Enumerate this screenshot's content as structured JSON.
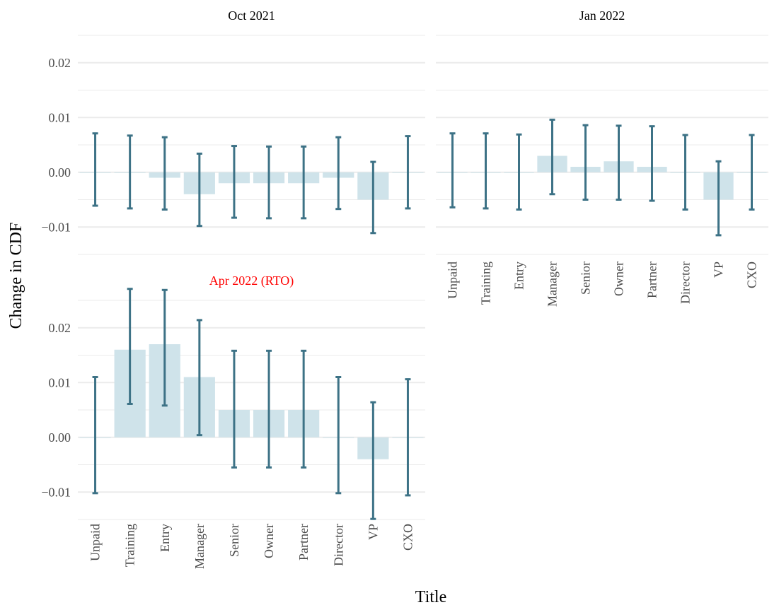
{
  "chart_data": {
    "type": "bar",
    "xlabel": "Title",
    "ylabel": "Change in CDF",
    "categories": [
      "Unpaid",
      "Training",
      "Entry",
      "Manager",
      "Senior",
      "Owner",
      "Partner",
      "Director",
      "VP",
      "CXO"
    ],
    "bar_color": "#cfe3ea",
    "errorbar_color": "#3d7286",
    "grid_color": "#ebebeb",
    "panels": [
      {
        "title": "Oct 2021",
        "title_color": "#000000",
        "ylim": [
          -0.015,
          0.025
        ],
        "y_ticks": [
          -0.01,
          0.0,
          0.01,
          0.02
        ],
        "y_tick_labels": [
          "−0.01",
          "0.00",
          "0.01",
          "0.02"
        ],
        "values": [
          0.0,
          0.0,
          -0.001,
          -0.004,
          -0.002,
          -0.002,
          -0.002,
          -0.001,
          -0.005,
          0.0
        ],
        "lower": [
          -0.0061,
          -0.0066,
          -0.0068,
          -0.0098,
          -0.0083,
          -0.0084,
          -0.0084,
          -0.0067,
          -0.0111,
          -0.0066
        ],
        "upper": [
          0.0071,
          0.0067,
          0.0064,
          0.0034,
          0.0048,
          0.0047,
          0.0047,
          0.0064,
          0.0019,
          0.0066
        ]
      },
      {
        "title": "Jan 2022",
        "title_color": "#000000",
        "ylim": [
          -0.015,
          0.025
        ],
        "y_ticks": [
          -0.01,
          0.0,
          0.01,
          0.02
        ],
        "y_tick_labels": [
          "−0.01",
          "0.00",
          "0.01",
          "0.02"
        ],
        "values": [
          0.0,
          0.0,
          0.0,
          0.003,
          0.001,
          0.002,
          0.001,
          0.0,
          -0.005,
          0.0
        ],
        "lower": [
          -0.0064,
          -0.0066,
          -0.0068,
          -0.004,
          -0.005,
          -0.005,
          -0.0052,
          -0.0068,
          -0.0115,
          -0.0068
        ],
        "upper": [
          0.0071,
          0.0071,
          0.0069,
          0.0096,
          0.0086,
          0.0085,
          0.0084,
          0.0068,
          0.002,
          0.0068
        ]
      },
      {
        "title": "Apr 2022 (RTO)",
        "title_color": "#ff0000",
        "ylim": [
          -0.015,
          0.025
        ],
        "y_ticks": [
          -0.01,
          0.0,
          0.01,
          0.02
        ],
        "y_tick_labels": [
          "−0.01",
          "0.00",
          "0.01",
          "0.02"
        ],
        "values": [
          0.0,
          0.016,
          0.017,
          0.011,
          0.005,
          0.005,
          0.005,
          0.0,
          -0.004,
          0.0
        ],
        "lower": [
          -0.0102,
          0.0061,
          0.0058,
          0.0004,
          -0.0055,
          -0.0055,
          -0.0055,
          -0.0102,
          -0.0149,
          -0.0106
        ],
        "upper": [
          0.011,
          0.0271,
          0.0269,
          0.0214,
          0.0158,
          0.0158,
          0.0158,
          0.011,
          0.0064,
          0.0106
        ]
      }
    ]
  }
}
